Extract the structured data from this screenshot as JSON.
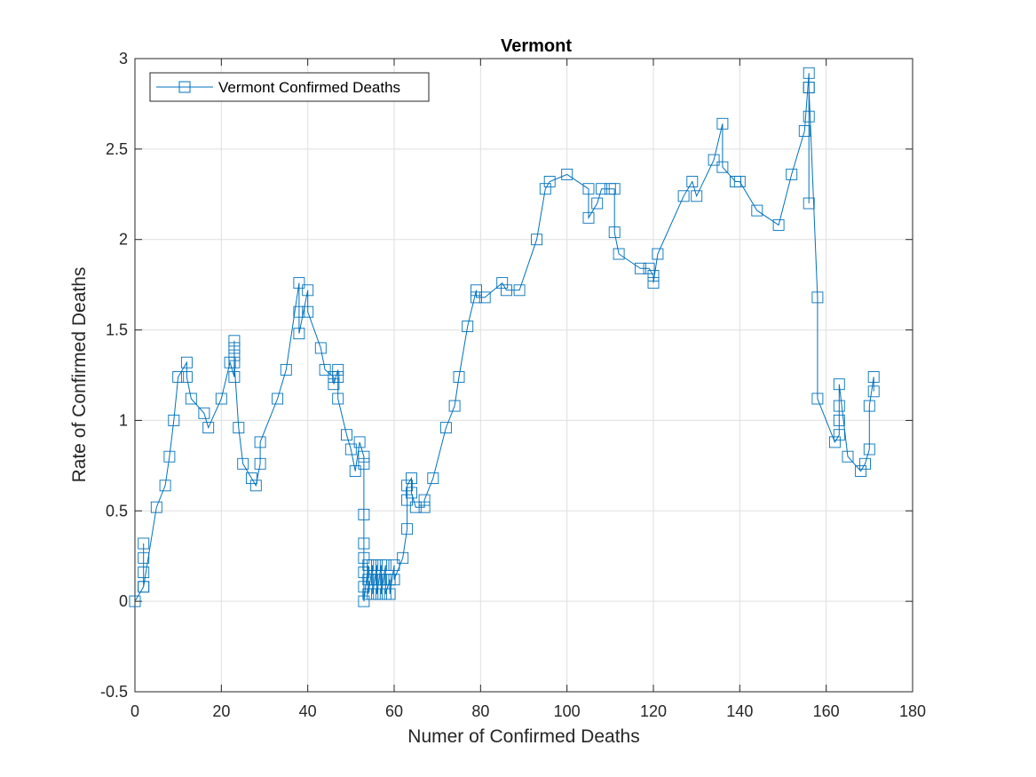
{
  "chart_data": {
    "type": "line",
    "title": "Vermont",
    "xlabel": "Numer of Confirmed Deaths",
    "ylabel": "Rate of Confirmed Deaths",
    "xlim": [
      0,
      180
    ],
    "ylim": [
      -0.5,
      3
    ],
    "xticks": [
      "0",
      "20",
      "40",
      "60",
      "80",
      "100",
      "120",
      "140",
      "160",
      "180"
    ],
    "yticks": [
      "-0.5",
      "0",
      "0.5",
      "1",
      "1.5",
      "2",
      "2.5",
      "3"
    ],
    "grid": true,
    "legend_position": "top-left",
    "marker": "square",
    "series": [
      {
        "name": "Vermont Confirmed Deaths",
        "color": "#0072BD",
        "x": [
          0,
          2,
          2,
          2,
          2,
          2,
          5,
          7,
          8,
          9,
          10,
          12,
          12,
          13,
          16,
          17,
          20,
          22,
          23,
          23,
          23,
          23,
          23,
          24,
          25,
          27,
          28,
          29,
          29,
          33,
          35,
          38,
          38,
          38,
          40,
          40,
          43,
          44,
          46,
          46,
          47,
          47,
          47,
          49,
          50,
          51,
          52,
          53,
          53,
          53,
          53,
          53,
          53,
          53,
          53,
          54,
          54,
          54,
          55,
          55,
          55,
          56,
          56,
          56,
          57,
          57,
          57,
          58,
          58,
          58,
          59,
          59,
          60,
          60,
          62,
          63,
          63,
          63,
          64,
          64,
          65,
          67,
          67,
          69,
          72,
          74,
          75,
          77,
          79,
          79,
          81,
          85,
          86,
          89,
          93,
          95,
          96,
          100,
          105,
          105,
          107,
          108,
          110,
          111,
          111,
          112,
          117,
          119,
          120,
          120,
          121,
          127,
          129,
          130,
          134,
          136,
          136,
          139,
          140,
          144,
          149,
          152,
          155,
          156,
          156,
          156,
          156,
          156,
          158,
          158,
          162,
          163,
          163,
          163,
          163,
          165,
          168,
          169,
          170,
          170,
          171,
          171
        ],
        "y": [
          0,
          0.08,
          0.16,
          0.24,
          0.32,
          0.08,
          0.52,
          0.64,
          0.8,
          1.0,
          1.24,
          1.32,
          1.24,
          1.12,
          1.04,
          0.96,
          1.12,
          1.32,
          1.24,
          1.44,
          1.4,
          1.36,
          1.32,
          0.96,
          0.76,
          0.68,
          0.64,
          0.76,
          0.88,
          1.12,
          1.28,
          1.76,
          1.6,
          1.48,
          1.72,
          1.6,
          1.4,
          1.28,
          1.24,
          1.2,
          1.28,
          1.24,
          1.12,
          0.92,
          0.84,
          0.72,
          0.88,
          0.8,
          0.76,
          0.48,
          0.32,
          0.24,
          0.16,
          0.08,
          0.0,
          0.2,
          0.12,
          0.04,
          0.2,
          0.12,
          0.04,
          0.2,
          0.12,
          0.04,
          0.2,
          0.12,
          0.04,
          0.2,
          0.12,
          0.04,
          0.12,
          0.04,
          0.2,
          0.12,
          0.24,
          0.4,
          0.56,
          0.64,
          0.68,
          0.6,
          0.52,
          0.52,
          0.56,
          0.68,
          0.96,
          1.08,
          1.24,
          1.52,
          1.72,
          1.68,
          1.68,
          1.76,
          1.72,
          1.72,
          2.0,
          2.28,
          2.32,
          2.36,
          2.28,
          2.12,
          2.2,
          2.28,
          2.28,
          2.28,
          2.04,
          1.92,
          1.84,
          1.84,
          1.8,
          1.76,
          1.92,
          2.24,
          2.32,
          2.24,
          2.44,
          2.64,
          2.4,
          2.32,
          2.32,
          2.16,
          2.08,
          2.36,
          2.6,
          2.92,
          2.84,
          2.68,
          2.2,
          2.84,
          1.68,
          1.12,
          0.88,
          0.92,
          1.0,
          1.08,
          1.2,
          0.8,
          0.72,
          0.76,
          0.84,
          1.08,
          1.24,
          1.16
        ]
      }
    ]
  }
}
